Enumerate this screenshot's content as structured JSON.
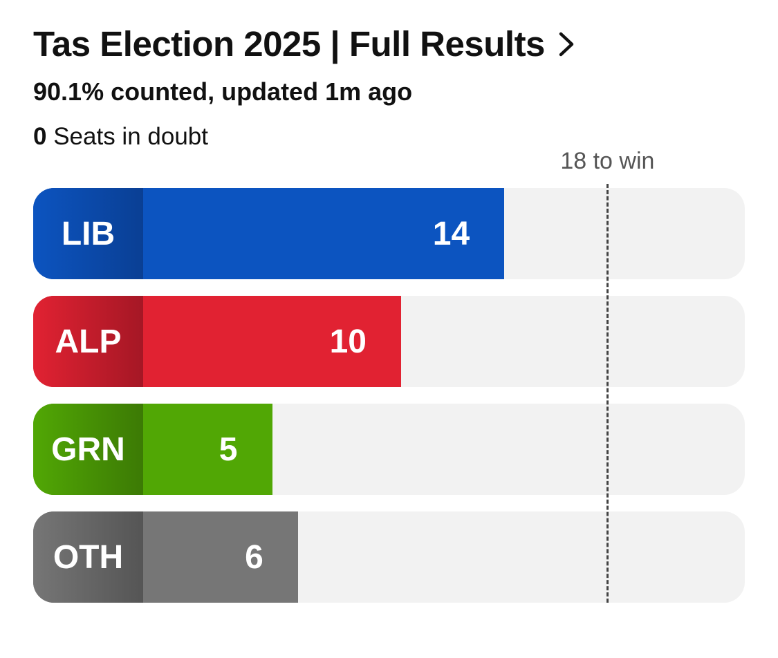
{
  "header": {
    "title": "Tas Election 2025 | Full Results",
    "chevron_icon": "chevron-right-icon",
    "subtitle": "90.1% counted, updated 1m ago",
    "seats_in_doubt_count": "0",
    "seats_in_doubt_label": "Seats in doubt"
  },
  "chart_data": {
    "type": "bar",
    "orientation": "horizontal",
    "categories": [
      "LIB",
      "ALP",
      "GRN",
      "OTH"
    ],
    "values": [
      14,
      10,
      5,
      6
    ],
    "colors": {
      "LIB": "#0c54c0",
      "ALP": "#e12232",
      "GRN": "#51a705",
      "OTH": "#767676"
    },
    "label_colors": {
      "LIB": "#0a3f94",
      "ALP": "#a51725",
      "GRN": "#3c7a05",
      "OTH": "#555555"
    },
    "track_color": "#f2f2f2",
    "xlim": [
      0,
      35
    ],
    "threshold": {
      "value": 18,
      "label": "18 to win"
    },
    "title": "",
    "xlabel": "",
    "ylabel": ""
  }
}
